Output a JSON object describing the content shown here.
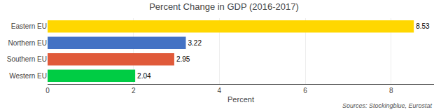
{
  "chart_data": {
    "type": "bar",
    "orientation": "horizontal",
    "title": "Percent Change in GDP (2016-2017)",
    "categories": [
      "Eastern EU",
      "Northern EU",
      "Southern EU",
      "Western EU"
    ],
    "values": [
      8.53,
      3.22,
      2.95,
      2.04
    ],
    "colors": [
      "#FFD700",
      "#4472C4",
      "#E05A3A",
      "#00CC44"
    ],
    "xlabel": "Percent",
    "xlim": [
      0,
      9.0
    ],
    "xticks": [
      0,
      2,
      4,
      6,
      8
    ],
    "grid": true,
    "data_labels": true,
    "annotations": [
      "Sources: Stockingblue, Eurostat"
    ]
  }
}
